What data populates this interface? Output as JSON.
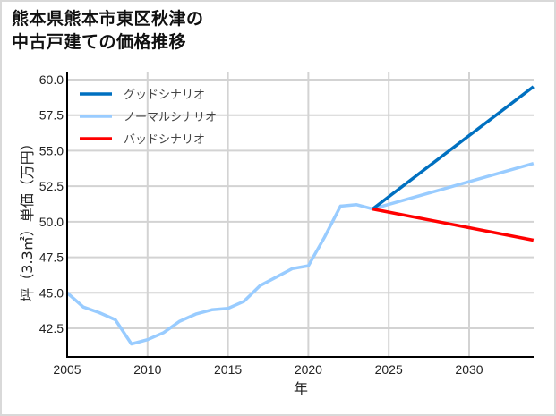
{
  "title_line1": "熊本県熊本市東区秋津の",
  "title_line2": "中古戸建ての価格推移",
  "chart_data": {
    "type": "line",
    "title": "熊本県熊本市東区秋津の中古戸建ての価格推移",
    "xlabel": "年",
    "ylabel": "坪（3.3㎡）単価（万円）",
    "xlim": [
      2005,
      2034
    ],
    "ylim": [
      40.6,
      60.0
    ],
    "x_ticks": [
      2005,
      2010,
      2015,
      2020,
      2025,
      2030
    ],
    "y_ticks": [
      42.5,
      45.0,
      47.5,
      50.0,
      52.5,
      55.0,
      57.5,
      60.0
    ],
    "grid": true,
    "legend_position": "upper left",
    "series": [
      {
        "name": "ノーマルシナリオ",
        "color": "#99ccff",
        "x": [
          2005,
          2006,
          2007,
          2008,
          2009,
          2010,
          2011,
          2012,
          2013,
          2014,
          2015,
          2016,
          2017,
          2018,
          2019,
          2020,
          2021,
          2022,
          2023,
          2024,
          2034
        ],
        "values": [
          45.0,
          44.0,
          43.6,
          43.1,
          41.4,
          41.7,
          42.2,
          43.0,
          43.5,
          43.8,
          43.9,
          44.4,
          45.5,
          46.1,
          46.7,
          46.9,
          48.9,
          51.1,
          51.2,
          50.9,
          54.1
        ]
      },
      {
        "name": "グッドシナリオ",
        "color": "#0070c0",
        "x": [
          2024,
          2034
        ],
        "values": [
          50.9,
          59.5
        ]
      },
      {
        "name": "バッドシナリオ",
        "color": "#ff0000",
        "x": [
          2024,
          2034
        ],
        "values": [
          50.9,
          48.7
        ]
      }
    ]
  },
  "legend": [
    {
      "label": "グッドシナリオ",
      "color": "#0070c0"
    },
    {
      "label": "ノーマルシナリオ",
      "color": "#99ccff"
    },
    {
      "label": "バッドシナリオ",
      "color": "#ff0000"
    }
  ]
}
